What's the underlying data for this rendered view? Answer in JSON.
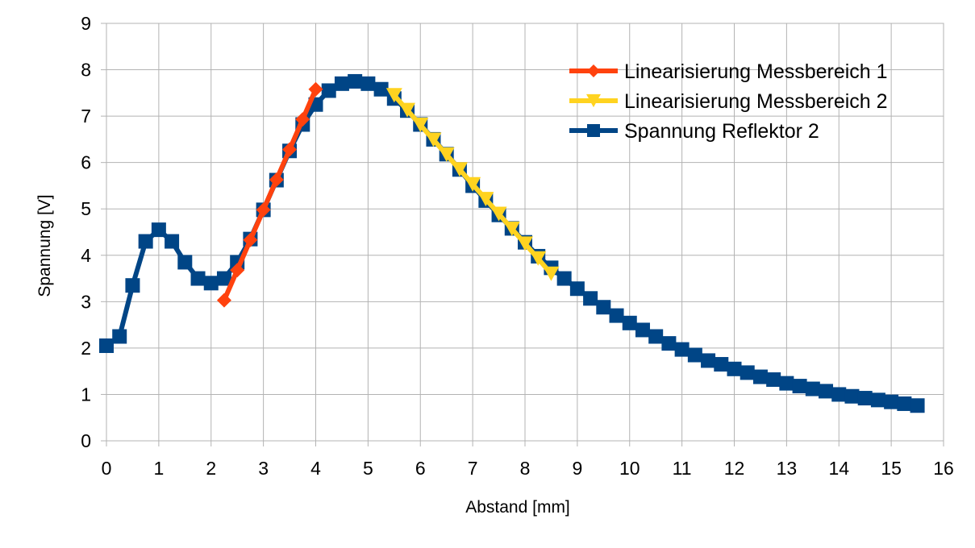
{
  "chart_data": {
    "type": "line",
    "title": "",
    "xlabel": "Abstand [mm]",
    "ylabel": "Spannung [V]",
    "xlim": [
      0,
      16
    ],
    "ylim": [
      0,
      9
    ],
    "x_ticks": [
      "0",
      "1",
      "2",
      "3",
      "4",
      "5",
      "6",
      "7",
      "8",
      "9",
      "10",
      "11",
      "12",
      "13",
      "14",
      "15",
      "16"
    ],
    "y_ticks": [
      "0",
      "1",
      "2",
      "3",
      "4",
      "5",
      "6",
      "7",
      "8",
      "9"
    ],
    "grid": true,
    "legend_position": "top-right",
    "series": [
      {
        "name": "Linearisierung Messbereich 1",
        "color": "#ff420e",
        "marker": "diamond",
        "x": [
          2.25,
          2.5,
          2.75,
          3.0,
          3.25,
          3.5,
          3.75,
          4.0
        ],
        "y": [
          3.03,
          3.68,
          4.33,
          4.98,
          5.63,
          6.28,
          6.93,
          7.58
        ]
      },
      {
        "name": "Linearisierung Messbereich 2",
        "color": "#ffd320",
        "marker": "triangle-down",
        "x": [
          5.5,
          5.75,
          6.0,
          6.25,
          6.5,
          6.75,
          7.0,
          7.25,
          7.5,
          7.75,
          8.0,
          8.25,
          8.5
        ],
        "y": [
          7.45,
          7.13,
          6.81,
          6.49,
          6.17,
          5.85,
          5.53,
          5.21,
          4.89,
          4.57,
          4.25,
          3.93,
          3.6
        ]
      },
      {
        "name": "Spannung Reflektor 2",
        "color": "#004586",
        "marker": "square",
        "x": [
          0,
          0.25,
          0.5,
          0.75,
          1.0,
          1.25,
          1.5,
          1.75,
          2.0,
          2.25,
          2.5,
          2.75,
          3.0,
          3.25,
          3.5,
          3.75,
          4.0,
          4.25,
          4.5,
          4.75,
          5.0,
          5.25,
          5.5,
          5.75,
          6.0,
          6.25,
          6.5,
          6.75,
          7.0,
          7.25,
          7.5,
          7.75,
          8.0,
          8.25,
          8.5,
          8.75,
          9.0,
          9.25,
          9.5,
          9.75,
          10.0,
          10.25,
          10.5,
          10.75,
          11.0,
          11.25,
          11.5,
          11.75,
          12.0,
          12.25,
          12.5,
          12.75,
          13.0,
          13.25,
          13.5,
          13.75,
          14.0,
          14.25,
          14.5,
          14.75,
          15.0,
          15.25,
          15.5
        ],
        "y": [
          2.05,
          2.25,
          3.35,
          4.3,
          4.55,
          4.3,
          3.85,
          3.5,
          3.4,
          3.5,
          3.85,
          4.35,
          4.98,
          5.62,
          6.25,
          6.82,
          7.25,
          7.55,
          7.7,
          7.75,
          7.7,
          7.58,
          7.38,
          7.12,
          6.82,
          6.5,
          6.18,
          5.85,
          5.5,
          5.18,
          4.87,
          4.58,
          4.28,
          3.98,
          3.73,
          3.5,
          3.28,
          3.07,
          2.88,
          2.7,
          2.54,
          2.39,
          2.25,
          2.1,
          1.97,
          1.85,
          1.73,
          1.65,
          1.55,
          1.47,
          1.38,
          1.32,
          1.24,
          1.18,
          1.12,
          1.07,
          1.0,
          0.96,
          0.92,
          0.88,
          0.84,
          0.8,
          0.76
        ]
      }
    ]
  }
}
